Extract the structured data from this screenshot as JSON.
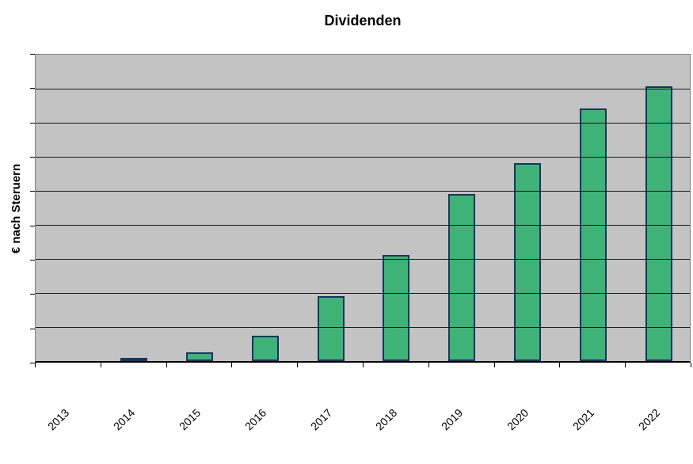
{
  "chart_data": {
    "type": "bar",
    "title": "Dividenden",
    "ylabel": "€ nach Steruern",
    "xlabel": "",
    "categories": [
      "2013",
      "2014",
      "2015",
      "2016",
      "2017",
      "2018",
      "2019",
      "2020",
      "2021",
      "2022"
    ],
    "values": [
      0,
      0.1,
      0.25,
      0.75,
      1.9,
      3.1,
      4.9,
      5.8,
      7.4,
      8.05
    ],
    "value_units": "gridline units (no numeric y-axis tick labels are shown in the chart)",
    "ylim": [
      0,
      9
    ],
    "gridlines": "horizontal, 9 equal bands, drawn over the bars",
    "legend": "none",
    "colors": {
      "bar_fill": "#3FB377",
      "bar_border": "#16365D",
      "plot_background": "#C3C3C3",
      "gridline": "#1a1a1a",
      "text": "#000000",
      "page_background": "#FFFFFF"
    }
  }
}
